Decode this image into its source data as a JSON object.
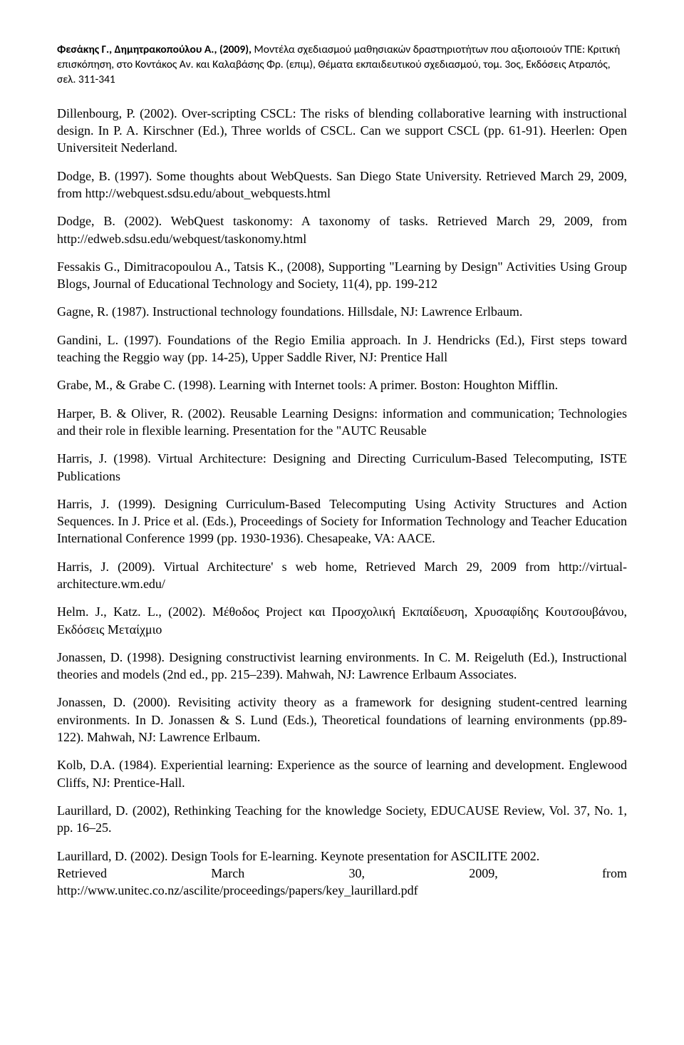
{
  "header": {
    "authors": "Φεσάκης Γ., Δημητρακοπούλου Α., (2009), ",
    "rest": "Μοντέλα σχεδιασμού μαθησιακών δραστηριοτήτων που αξιοποιούν ΤΠΕ: Κριτική επισκόπηση, στο Κοντάκος Αν. και Καλαβάσης Φρ. (επιμ), Θέματα εκπαιδευτικού σχεδιασμού, τομ. 3ος, Εκδόσεις Ατραπός, σελ. 311-341"
  },
  "refs": {
    "r1": "Dillenbourg, P. (2002). Over-scripting CSCL: The risks of blending collaborative learning with instructional design. In P. A. Kirschner (Ed.), Three worlds of CSCL. Can we support CSCL (pp. 61-91). Heerlen: Open Universiteit Nederland.",
    "r2": "Dodge, B. (1997). Some thoughts about WebQuests. San Diego State University. Retrieved March 29, 2009, from http://webquest.sdsu.edu/about_webquests.html",
    "r3": "Dodge, B. (2002). WebQuest taskonomy: A taxonomy of tasks. Retrieved March 29, 2009, from http://edweb.sdsu.edu/webquest/taskonomy.html",
    "r4": "Fessakis G., Dimitracopoulou A., Tatsis K., (2008), Supporting \"Learning by Design\" Activities Using Group Blogs, Journal of Educational Technology and Society, 11(4), pp. 199-212",
    "r5": "Gagne, R. (1987). Instructional technology foundations. Hillsdale, NJ: Lawrence Erlbaum.",
    "r6": "Gandini, L. (1997). Foundations of the Regio Emilia approach. In J. Hendricks (Ed.), First steps toward teaching the Reggio way (pp. 14-25), Upper Saddle River, NJ: Prentice Hall",
    "r7": "Grabe, M., & Grabe C. (1998). Learning with Internet tools: A primer. Boston: Houghton Mifflin.",
    "r8": "Harper, B. & Oliver, R. (2002). Reusable Learning Designs: information and communication; Technologies and their role in flexible learning. Presentation for the \"AUTC Reusable",
    "r9": "Harris, J. (1998). Virtual Architecture: Designing and Directing Curriculum-Based Telecomputing, ISTE Publications",
    "r10": "Harris, J. (1999). Designing Curriculum-Based Telecomputing Using Activity Structures and Action Sequences. In J. Price et al. (Eds.), Proceedings of Society for Information Technology and Teacher Education International Conference 1999 (pp. 1930-1936). Chesapeake, VA: AACE.",
    "r11": "Harris, J. (2009). Virtual  Architecture' s web home, Retrieved March 29, 2009 from http://virtual-architecture.wm.edu/",
    "r12": "Helm. J., Katz. L., (2002). Μέθοδος Project και Προσχολική Εκπαίδευση, Χρυσαφίδης Κουτσουβάνου, Εκδόσεις Μεταίχμιο",
    "r13": "Jonassen, D. (1998). Designing constructivist learning environments. In C. M. Reigeluth (Ed.), Instructional theories and models (2nd ed., pp. 215–239). Mahwah, NJ: Lawrence Erlbaum Associates.",
    "r14": "Jonassen, D. (2000). Revisiting activity theory as a framework for designing student-centred learning environments. In D. Jonassen & S. Lund (Eds.), Theoretical foundations of learning environments (pp.89-122). Mahwah, NJ: Lawrence Erlbaum.",
    "r15": "Kolb, D.A. (1984). Experiential learning: Experience as the source of learning and development. Englewood Cliffs, NJ: Prentice-Hall.",
    "r16": "Laurillard, D. (2002), Rethinking Teaching for the knowledge Society, EDUCAUSE Review, Vol. 37, No. 1, pp. 16–25.",
    "r17a": "Laurillard, D. (2002). Design Tools for E-learning. Keynote presentation for ASCILITE 2002.",
    "r17b": "Retrieved",
    "r17c": "March",
    "r17d": "30,",
    "r17e": "2009,",
    "r17f": "from",
    "r17g": "http://www.unitec.co.nz/ascilite/proceedings/papers/key_laurillard.pdf"
  }
}
